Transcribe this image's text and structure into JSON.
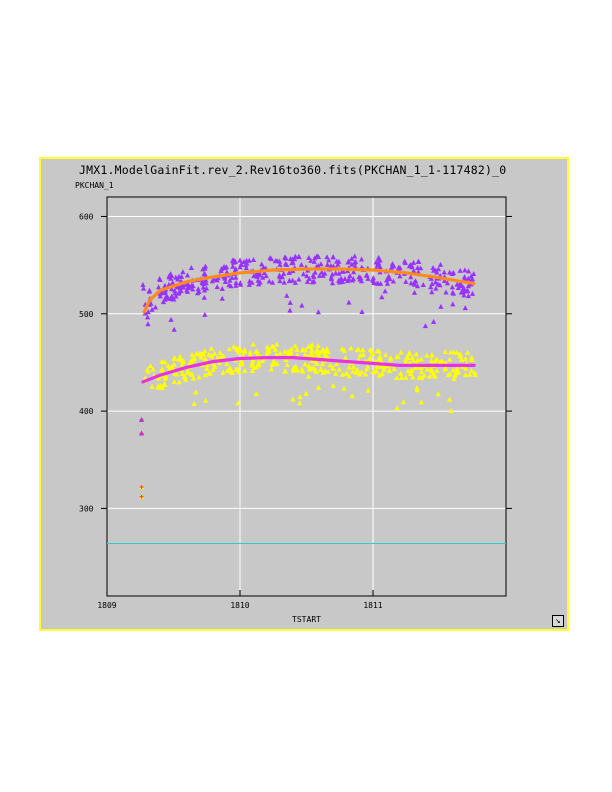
{
  "window": {
    "border_color": "#ffff33",
    "background": "#c8c8c8",
    "resize_icon": "resize-corner-icon"
  },
  "chart_data": {
    "type": "scatter",
    "title": "JMX1.ModelGainFit.rev_2.Rev16to360.fits(PKCHAN_1_1-117482)_0",
    "xlabel": "TSTART",
    "ylabel": "PKCHAN_1",
    "xlim": [
      1809.0,
      1812.0
    ],
    "ylim": [
      210,
      620
    ],
    "x_ticks": [
      {
        "value": 1809,
        "label": "1809"
      },
      {
        "value": 1810,
        "label": "1810"
      },
      {
        "value": 1811,
        "label": "1811"
      }
    ],
    "y_ticks": [
      {
        "value": 300,
        "label": "300"
      },
      {
        "value": 400,
        "label": "400"
      },
      {
        "value": 500,
        "label": "500"
      },
      {
        "value": 600,
        "label": "600"
      }
    ],
    "grid": true,
    "reference_line": {
      "y": 264,
      "color": "#33cccc"
    },
    "series": [
      {
        "marker": "triangle",
        "color": "#9933ff",
        "x_range": [
          1809.27,
          1811.77
        ],
        "base": 532,
        "spread": 14,
        "outliers": [
          {
            "x": 1809.26,
            "y": 391
          },
          {
            "x": 1809.26,
            "y": 377
          }
        ]
      },
      {
        "marker": "triangle",
        "color": "#ffff00",
        "x_range": [
          1809.27,
          1811.77
        ],
        "base": 444,
        "spread": 14,
        "outliers": [
          {
            "x": 1809.26,
            "y": 322
          },
          {
            "x": 1809.26,
            "y": 312
          }
        ]
      },
      {
        "marker": "line",
        "color": "#ff8c1a",
        "points": [
          [
            1809.28,
            502
          ],
          [
            1809.32,
            514
          ],
          [
            1809.4,
            524
          ],
          [
            1809.6,
            533
          ],
          [
            1809.8,
            538
          ],
          [
            1810.0,
            542
          ],
          [
            1810.25,
            545
          ],
          [
            1810.5,
            546
          ],
          [
            1810.75,
            546
          ],
          [
            1811.0,
            545
          ],
          [
            1811.25,
            542
          ],
          [
            1811.5,
            537
          ],
          [
            1811.76,
            531
          ]
        ]
      },
      {
        "marker": "line",
        "color": "#e633e6",
        "points": [
          [
            1809.27,
            430
          ],
          [
            1809.4,
            437
          ],
          [
            1809.6,
            445
          ],
          [
            1809.8,
            451
          ],
          [
            1810.0,
            454
          ],
          [
            1810.2,
            455
          ],
          [
            1810.4,
            455
          ],
          [
            1810.6,
            453
          ],
          [
            1810.8,
            451
          ],
          [
            1811.0,
            449
          ],
          [
            1811.2,
            447
          ],
          [
            1811.4,
            447
          ],
          [
            1811.6,
            447
          ],
          [
            1811.76,
            447
          ]
        ]
      },
      {
        "marker": "cross",
        "color": "#ff3333",
        "points": [
          [
            1809.26,
            322
          ],
          [
            1809.26,
            312
          ],
          [
            1809.26,
            391
          ],
          [
            1809.26,
            377
          ]
        ]
      }
    ]
  }
}
